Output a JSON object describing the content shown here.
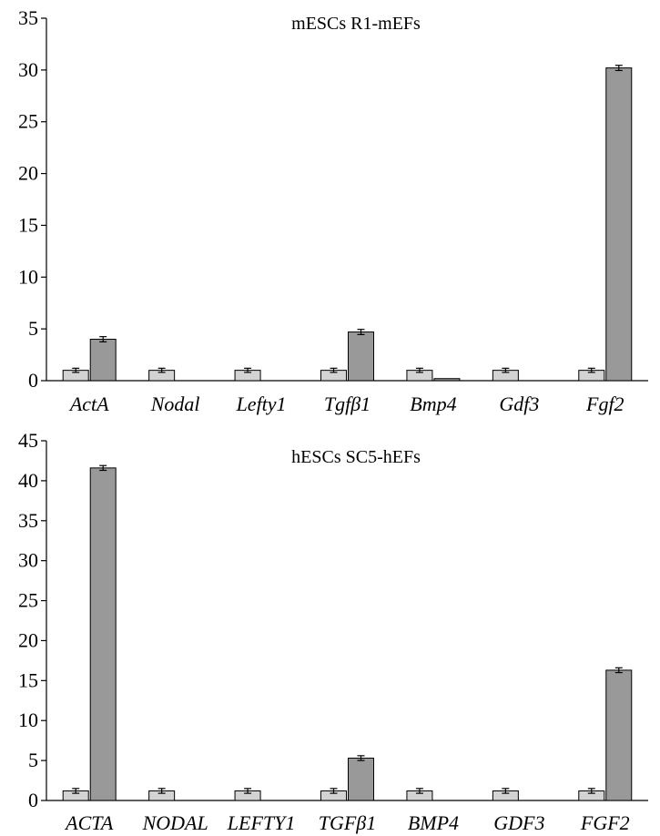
{
  "chart_data": [
    {
      "type": "bar",
      "title": "mESCs R1-mEFs",
      "categories": [
        "ActA",
        "Nodal",
        "Lefty1",
        "Tgfβ1",
        "Bmp4",
        "Gdf3",
        "Fgf2"
      ],
      "series": [
        {
          "color": "#d3d3d3",
          "values": [
            1,
            1,
            1,
            1,
            1,
            1,
            1
          ],
          "errors": [
            0.2,
            0.2,
            0.2,
            0.2,
            0.2,
            0.2,
            0.2
          ]
        },
        {
          "color": "#999999",
          "values": [
            4.0,
            0,
            0,
            4.7,
            0.2,
            0,
            30.2
          ],
          "errors": [
            0.25,
            0,
            0,
            0.25,
            0,
            0,
            0.25
          ]
        }
      ],
      "ylim": [
        0,
        35
      ],
      "yticks": [
        0,
        5,
        10,
        15,
        20,
        25,
        30,
        35
      ]
    },
    {
      "type": "bar",
      "title": "hESCs SC5-hEFs",
      "categories": [
        "ACTA",
        "NODAL",
        "LEFTY1",
        "TGFβ1",
        "BMP4",
        "GDF3",
        "FGF2"
      ],
      "series": [
        {
          "color": "#d3d3d3",
          "values": [
            1.2,
            1.2,
            1.2,
            1.2,
            1.2,
            1.2,
            1.2
          ],
          "errors": [
            0.3,
            0.3,
            0.3,
            0.3,
            0.3,
            0.3,
            0.3
          ]
        },
        {
          "color": "#999999",
          "values": [
            41.6,
            0,
            0,
            5.3,
            0,
            0,
            16.3
          ],
          "errors": [
            0.3,
            0,
            0,
            0.3,
            0,
            0,
            0.3
          ]
        }
      ],
      "ylim": [
        0,
        45
      ],
      "yticks": [
        0,
        5,
        10,
        15,
        20,
        25,
        30,
        35,
        40,
        45
      ]
    }
  ]
}
